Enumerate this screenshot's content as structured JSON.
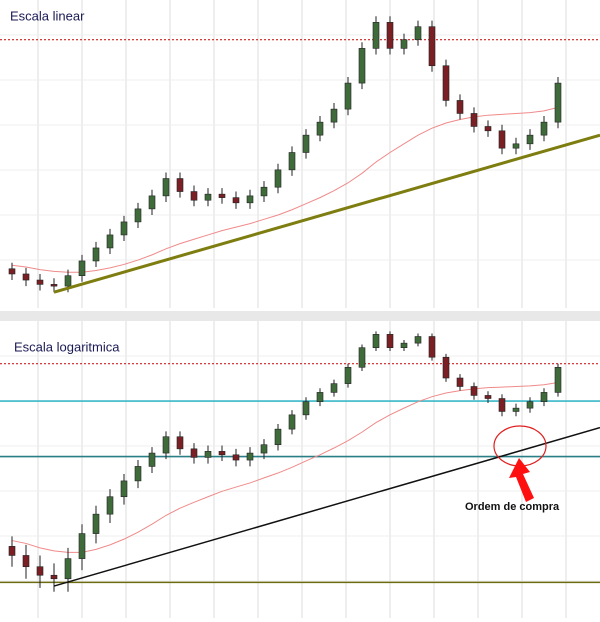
{
  "chart_data": {
    "type": "candlestick",
    "up_color": "#3f6b3a",
    "down_color": "#7a1f24",
    "ma_color": "#f08a8a",
    "grid": true,
    "open": [
      11.6,
      11,
      10.3,
      9.8,
      9.6,
      10.8,
      12.5,
      14,
      15.5,
      17,
      18.5,
      20,
      22,
      20.5,
      19.5,
      20.2,
      19.8,
      19.2,
      20,
      21,
      23,
      25,
      27,
      28.5,
      30,
      33,
      37,
      40,
      37,
      38,
      39.5,
      35,
      31,
      29.5,
      28,
      27.5,
      25.5,
      26,
      27,
      28.5
    ],
    "high": [
      12.3,
      11.7,
      11,
      10.5,
      11.5,
      13.2,
      14.7,
      16.2,
      17.7,
      19.2,
      20.7,
      22.7,
      22.7,
      21.2,
      20.9,
      20.9,
      20.5,
      20.7,
      21.7,
      23.7,
      25.7,
      27.7,
      29.2,
      30.7,
      33.7,
      37.7,
      40.7,
      40.7,
      38.7,
      40.2,
      40.2,
      35.7,
      31.7,
      30.2,
      28.7,
      28.2,
      26.7,
      27.7,
      29.2,
      33.7
    ],
    "low": [
      10.3,
      9.6,
      9.1,
      8.9,
      8.9,
      10.1,
      11.8,
      13.3,
      14.8,
      16.3,
      17.8,
      19.3,
      19.8,
      18.8,
      18.8,
      19.1,
      18.5,
      18.5,
      19.3,
      20.3,
      22.3,
      24.3,
      26.3,
      27.8,
      29.3,
      32.3,
      36.3,
      36.3,
      36.3,
      37.3,
      34.3,
      30.3,
      28.8,
      27.3,
      26.8,
      24.8,
      24.8,
      25.3,
      26.3,
      27.8
    ],
    "close": [
      11,
      10.3,
      9.8,
      9.6,
      10.8,
      12.5,
      14,
      15.5,
      17,
      18.5,
      20,
      22,
      20.5,
      19.5,
      20.2,
      19.8,
      19.2,
      20,
      21,
      23,
      25,
      27,
      28.5,
      30,
      33,
      37,
      40,
      37,
      38,
      39.5,
      35,
      31,
      29.5,
      28,
      27.5,
      25.5,
      26,
      27,
      28.5,
      33
    ],
    "ma": [
      12,
      11.8,
      11.5,
      11.3,
      11.2,
      11.2,
      11.4,
      11.7,
      12.1,
      12.6,
      13.2,
      13.9,
      14.5,
      15,
      15.5,
      16,
      16.4,
      16.8,
      17.3,
      17.8,
      18.4,
      19.1,
      19.8,
      20.6,
      21.5,
      22.6,
      23.9,
      25,
      26,
      27,
      27.8,
      28.4,
      28.8,
      29.1,
      29.3,
      29.4,
      29.5,
      29.6,
      29.8,
      30.2
    ],
    "panels": [
      {
        "title": "Escala linear",
        "log": false,
        "ylim": [
          8,
          42
        ],
        "hlines": [
          {
            "value": 38,
            "color": "#d02020",
            "dash": true
          }
        ],
        "trendline": {
          "from": [
            3,
            8.9
          ],
          "to": [
            42,
            27
          ],
          "color": "#7d7d10"
        }
      },
      {
        "title": "Escala logaritmica",
        "log": true,
        "ylim": [
          8,
          42
        ],
        "hlines": [
          {
            "value": 33.7,
            "color": "#d02020",
            "dash": true
          },
          {
            "value": 27.1,
            "color": "#3ab8c8",
            "dash": false
          },
          {
            "value": 19.6,
            "color": "#2a7f86",
            "dash": false
          },
          {
            "value": 9.4,
            "color": "#6b6b10",
            "dash": false
          }
        ],
        "trendline": {
          "from": [
            3,
            9.2
          ],
          "to": [
            42,
            23.2
          ],
          "color": "#111111"
        },
        "annotation": "Ordem de compra"
      }
    ]
  }
}
